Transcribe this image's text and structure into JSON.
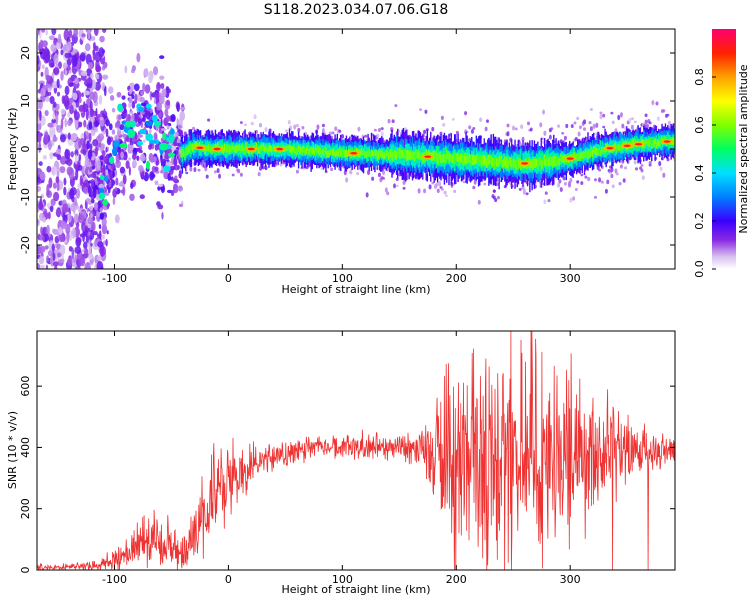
{
  "title": "S118.2023.034.07.06.G18",
  "chart_data": [
    {
      "type": "heatmap",
      "xlabel": "Height of straight line (km)",
      "ylabel": "Frequency (Hz)",
      "xlim": [
        -168,
        392
      ],
      "ylim": [
        -25,
        25
      ],
      "xticks": [
        -100,
        0,
        100,
        200,
        300
      ],
      "yticks": [
        -20,
        -10,
        0,
        10,
        20
      ],
      "grid": false,
      "ridge": {
        "x": [
          -120,
          -110,
          -100,
          -90,
          -80,
          -70,
          -60,
          -50,
          -45,
          -40,
          -35,
          -30,
          -20,
          0,
          50,
          100,
          150,
          200,
          230,
          250,
          270,
          300,
          330,
          360,
          392
        ],
        "y": [
          -5,
          -8,
          0,
          3,
          5,
          4,
          3,
          0,
          -1,
          -1,
          0,
          0.5,
          0,
          0,
          0,
          -0.8,
          -1.2,
          -2,
          -2.5,
          -3,
          -3,
          -2,
          0,
          1,
          1.7
        ]
      },
      "colorbar": {
        "label": "Normalized spectral amplitude",
        "range": [
          0,
          1
        ],
        "ticks": [
          "0.0",
          "0.2",
          "0.4",
          "0.6",
          "0.8"
        ]
      }
    },
    {
      "type": "line",
      "xlabel": "Height of straight line (km)",
      "ylabel": "SNR (10 * v/v)",
      "xlim": [
        -168,
        392
      ],
      "ylim": [
        0,
        780
      ],
      "xticks": [
        -100,
        0,
        100,
        200,
        300
      ],
      "yticks": [
        0,
        200,
        400,
        600
      ],
      "grid": false,
      "series": [
        {
          "color": "#ee3333",
          "x": [
            -168,
            -140,
            -110,
            -90,
            -70,
            -55,
            -40,
            -30,
            -20,
            -10,
            0,
            20,
            40,
            70,
            100,
            140,
            170,
            180,
            200,
            230,
            260,
            290,
            320,
            350,
            392
          ],
          "y": [
            10,
            10,
            15,
            50,
            100,
            80,
            50,
            100,
            180,
            250,
            290,
            330,
            370,
            395,
            400,
            405,
            400,
            380,
            380,
            380,
            380,
            380,
            380,
            385,
            385
          ],
          "spread": [
            5,
            5,
            10,
            30,
            45,
            45,
            30,
            50,
            70,
            70,
            60,
            40,
            25,
            20,
            20,
            25,
            30,
            120,
            180,
            200,
            200,
            180,
            120,
            50,
            20
          ]
        }
      ]
    }
  ]
}
